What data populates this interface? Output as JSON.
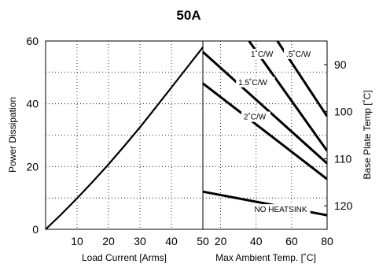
{
  "chart_data": {
    "type": "line",
    "title": "50A",
    "grid": true,
    "left_panel": {
      "xlabel": "Load Current  [Arms]",
      "ylabel": "Power Dissipation",
      "xlim": [
        0,
        50
      ],
      "ylim": [
        0,
        60
      ],
      "x_ticks": [
        "10",
        "20",
        "30",
        "40",
        "50"
      ],
      "y_ticks": [
        "0",
        "20",
        "40",
        "60"
      ],
      "series": [
        {
          "name": "",
          "x": [
            0,
            5,
            10,
            15,
            20,
            25,
            30,
            35,
            40,
            45,
            50
          ],
          "y": [
            0,
            4.8,
            9.9,
            15.2,
            20.7,
            26.5,
            32.5,
            38.8,
            45.2,
            51.6,
            58
          ]
        }
      ]
    },
    "right_panel": {
      "xlabel": "Max Ambient Temp. [˚C]",
      "ylabel": "Base Plate Temp [˚C]",
      "xlim": [
        10,
        80
      ],
      "y2lim": [
        125,
        85
      ],
      "x_ticks": [
        "50",
        "20",
        "40",
        "60",
        "80"
      ],
      "y_ticks": [
        "90",
        "100",
        "110",
        "120"
      ],
      "series": [
        {
          "name": ".5˚C/W",
          "x": [
            52,
            80
          ],
          "y": [
            60,
            36
          ]
        },
        {
          "name": "1˚C/W",
          "x": [
            36,
            80
          ],
          "y": [
            60,
            25
          ]
        },
        {
          "name": "1.5˚C/W",
          "x": [
            10,
            80
          ],
          "y": [
            56.5,
            21
          ]
        },
        {
          "name": "2˚C/W",
          "x": [
            10,
            80
          ],
          "y": [
            46.5,
            16
          ]
        },
        {
          "name": "NO HEATSINK",
          "x": [
            10,
            80
          ],
          "y": [
            12,
            4.5
          ]
        }
      ],
      "labels": [
        {
          "text": "1˚C/W",
          "x": 37,
          "y": 55
        },
        {
          "text": ".5˚C/W",
          "x": 57,
          "y": 55
        },
        {
          "text": "1.5˚C/W",
          "x": 30,
          "y": 46
        },
        {
          "text": "2˚C/W",
          "x": 33,
          "y": 35
        },
        {
          "text": "NO HEATSINK",
          "x": 39,
          "y": 5.5
        }
      ]
    }
  }
}
